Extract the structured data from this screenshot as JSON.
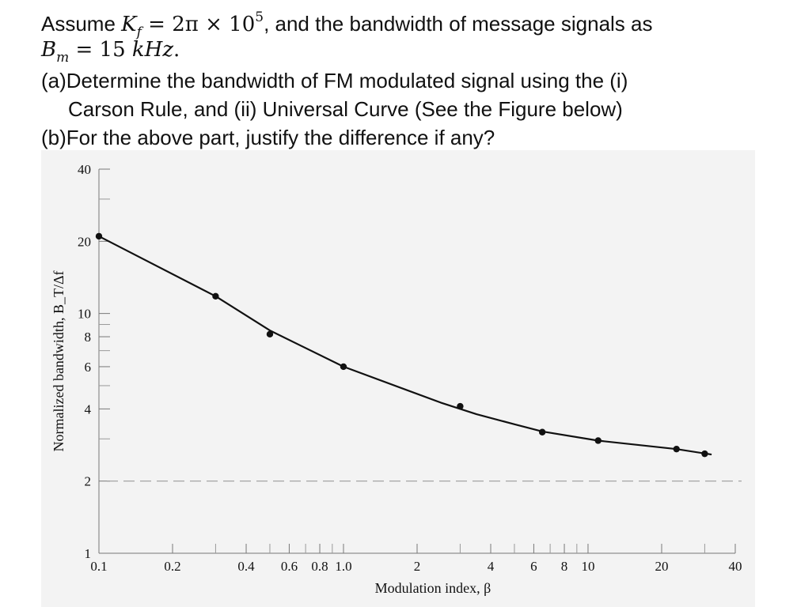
{
  "question": {
    "line1_prefix": "Assume ",
    "kf_symbol": "K",
    "kf_sub": "f",
    "kf_eq": " = 2π × 10",
    "kf_exp": "5",
    "line1_suffix": ", and the bandwidth of message signals as",
    "bm_symbol": "B",
    "bm_sub": "m",
    "bm_eq": " = 15 ",
    "bm_unit": "kHz",
    "bm_end": ".",
    "part_a_1": "(a)Determine the bandwidth of FM modulated signal using the (i)",
    "part_a_2": "Carson Rule, and (ii) Universal Curve (See the Figure below)",
    "part_b": "(b)For the above part, justify the difference if any?"
  },
  "chart_data": {
    "type": "line",
    "xlabel": "Modulation index, β",
    "ylabel": "Normalized bandwidth, B_T/Δf",
    "x_scale": "log",
    "y_scale": "log",
    "xlim": [
      0.1,
      40
    ],
    "ylim": [
      1,
      40
    ],
    "x_tick_labels": [
      {
        "v": 0.1,
        "label": "0.1"
      },
      {
        "v": 0.2,
        "label": "0.2"
      },
      {
        "v": 0.4,
        "label": "0.4"
      },
      {
        "v": 0.6,
        "label": "0.6"
      },
      {
        "v": 0.8,
        "label": "0.8"
      },
      {
        "v": 1.0,
        "label": "1.0"
      },
      {
        "v": 2,
        "label": "2"
      },
      {
        "v": 4,
        "label": "4"
      },
      {
        "v": 6,
        "label": "6"
      },
      {
        "v": 8,
        "label": "8"
      },
      {
        "v": 10,
        "label": "10"
      },
      {
        "v": 20,
        "label": "20"
      },
      {
        "v": 40,
        "label": "40"
      }
    ],
    "x_minor_ticks": [
      0.3,
      0.5,
      0.7,
      0.9,
      3,
      5,
      7,
      9,
      30
    ],
    "y_tick_labels": [
      {
        "v": 1,
        "label": "1"
      },
      {
        "v": 2,
        "label": "2"
      },
      {
        "v": 4,
        "label": "4"
      },
      {
        "v": 6,
        "label": "6"
      },
      {
        "v": 8,
        "label": "8"
      },
      {
        "v": 10,
        "label": "10"
      },
      {
        "v": 20,
        "label": "20"
      },
      {
        "v": 40,
        "label": "40"
      }
    ],
    "y_minor_ticks": [
      3,
      5,
      7,
      9,
      30
    ],
    "reference_line": {
      "y": 2,
      "style": "dashed"
    },
    "points": [
      {
        "x": 0.1,
        "y": 21
      },
      {
        "x": 0.3,
        "y": 11.8
      },
      {
        "x": 0.5,
        "y": 8.2
      },
      {
        "x": 1.0,
        "y": 6.0
      },
      {
        "x": 3.0,
        "y": 4.1
      },
      {
        "x": 6.5,
        "y": 3.2
      },
      {
        "x": 11,
        "y": 2.95
      },
      {
        "x": 23,
        "y": 2.72
      },
      {
        "x": 30,
        "y": 2.6
      }
    ],
    "curve": [
      {
        "x": 0.1,
        "y": 21
      },
      {
        "x": 0.3,
        "y": 11.8
      },
      {
        "x": 0.5,
        "y": 8.5
      },
      {
        "x": 1.0,
        "y": 6.0
      },
      {
        "x": 2.5,
        "y": 4.25
      },
      {
        "x": 3.5,
        "y": 3.8
      },
      {
        "x": 5.0,
        "y": 3.45
      },
      {
        "x": 6.5,
        "y": 3.22
      },
      {
        "x": 11,
        "y": 2.95
      },
      {
        "x": 23,
        "y": 2.72
      },
      {
        "x": 32,
        "y": 2.58
      }
    ],
    "colors": {
      "line": "#111111",
      "reference": "#9a9a9a",
      "background": "#f3f3f3"
    }
  }
}
